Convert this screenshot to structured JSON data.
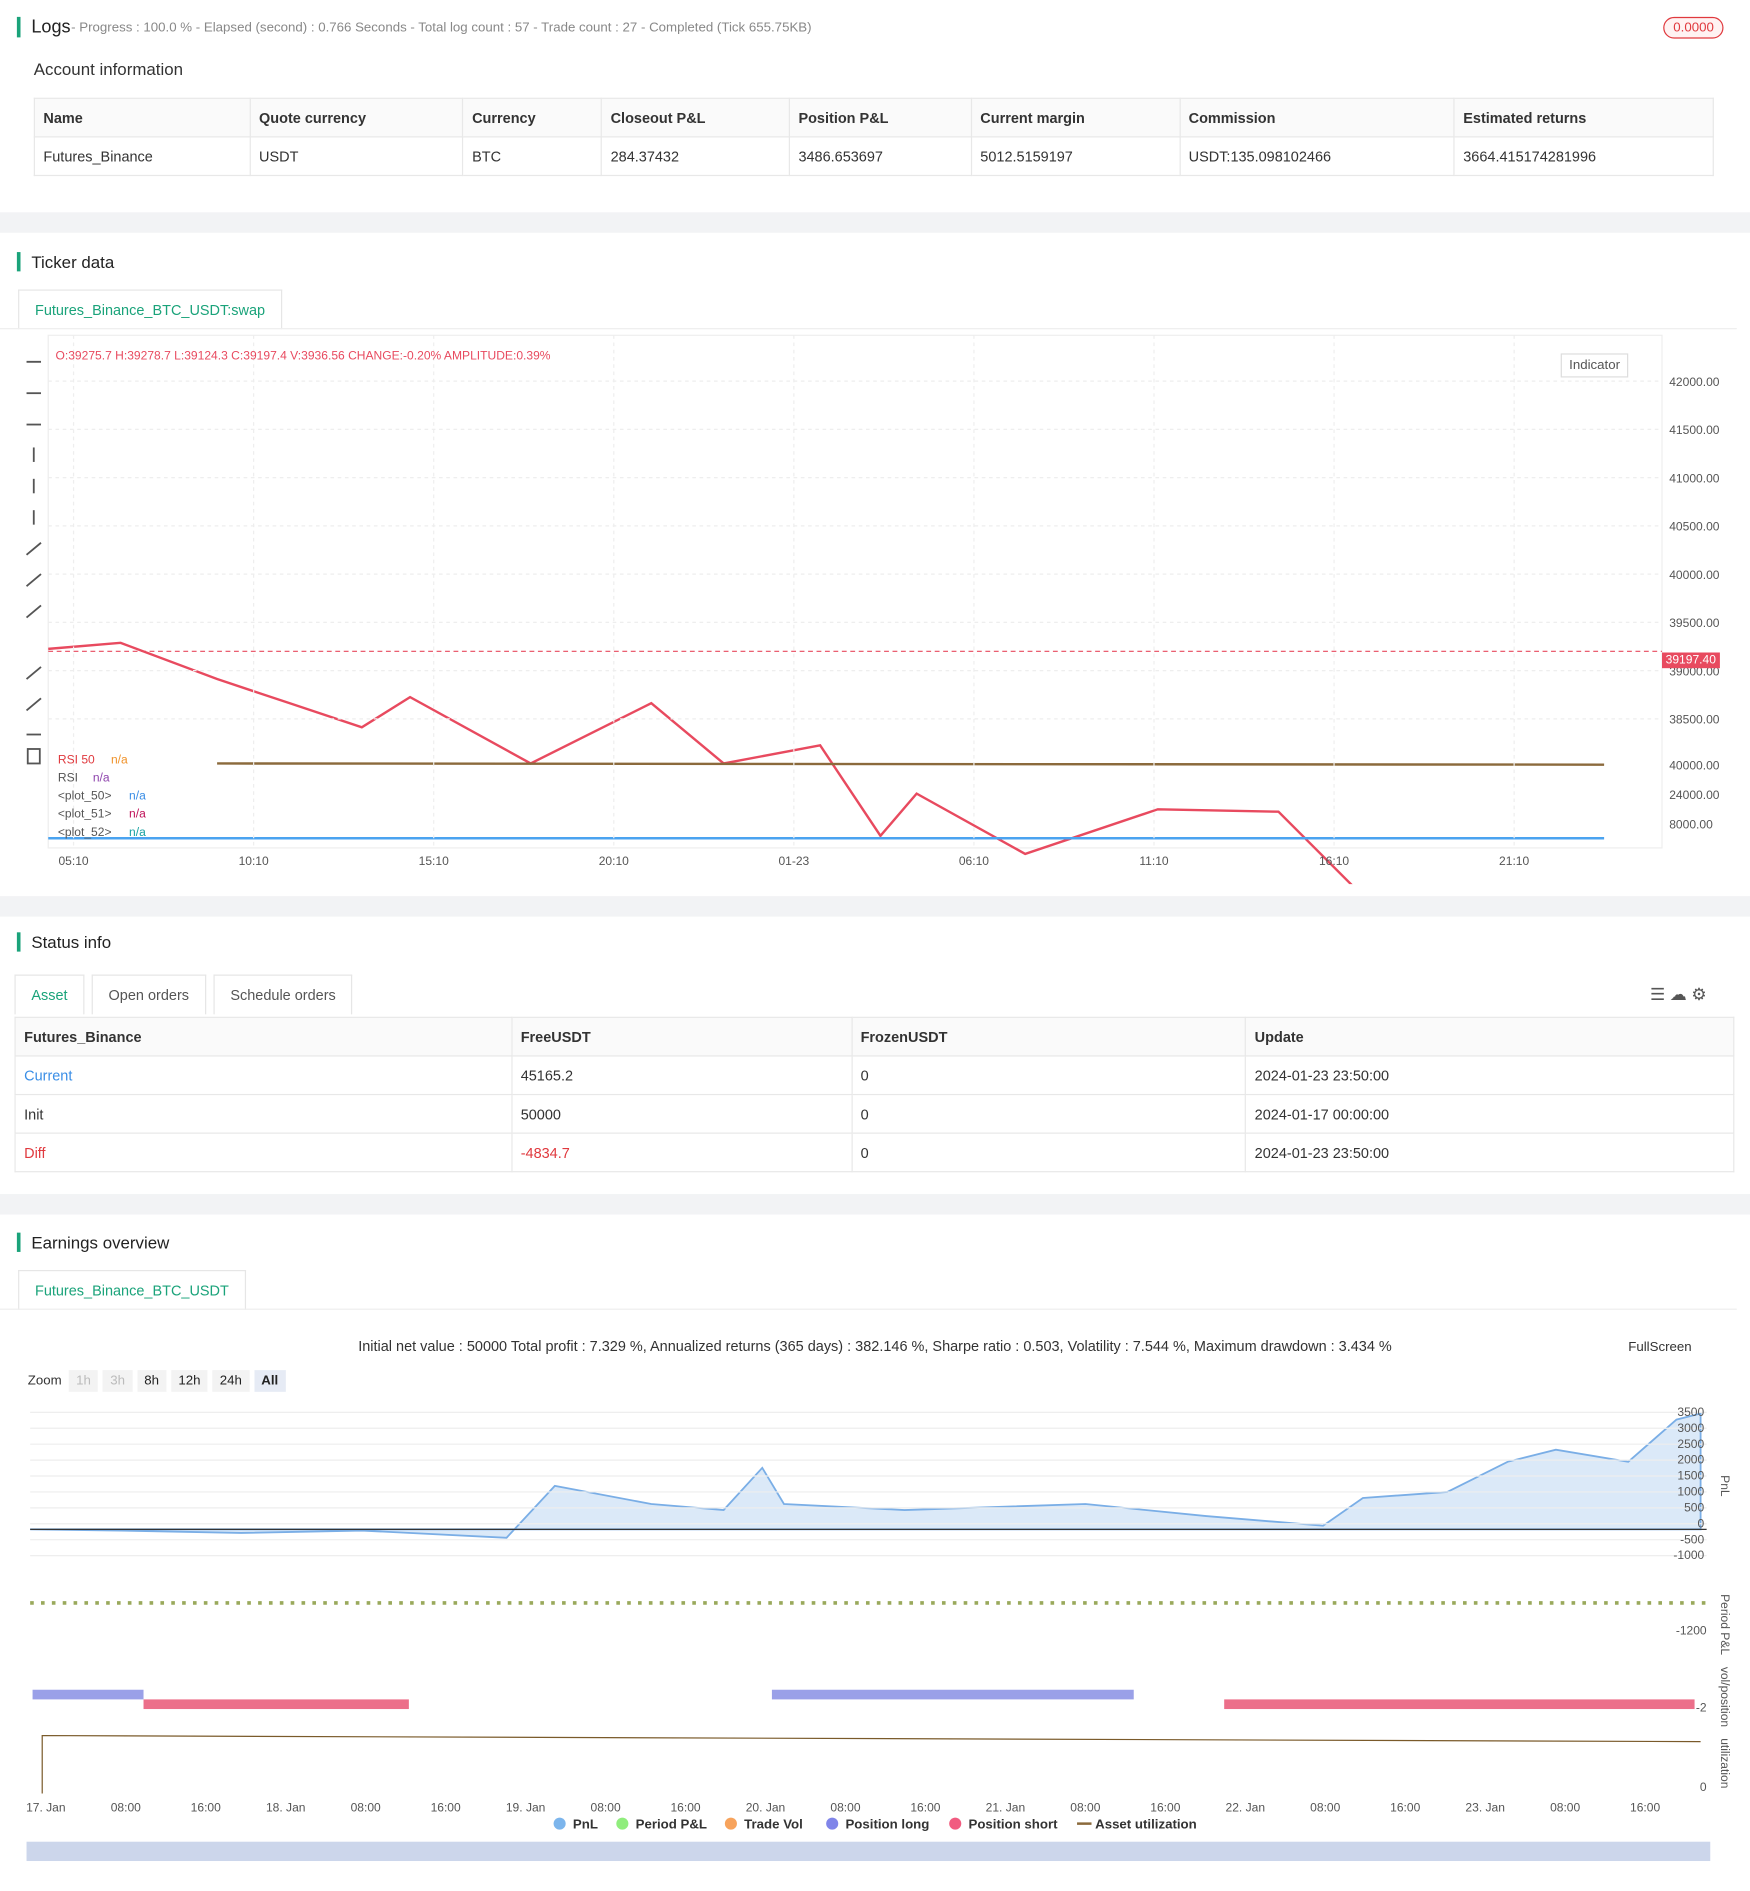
{
  "logs": {
    "title": "Logs",
    "status": "- Progress : 100.0 % - Elapsed (second) : 0.766  Seconds - Total log count : 57 - Trade count : 27 - Completed (Tick 655.75KB)",
    "badge": "0.0000"
  },
  "account": {
    "title": "Account information",
    "headers": [
      "Name",
      "Quote currency",
      "Currency",
      "Closeout P&L",
      "Position P&L",
      "Current margin",
      "Commission",
      "Estimated returns"
    ],
    "rows": [
      [
        "Futures_Binance",
        "USDT",
        "BTC",
        "284.37432",
        "3486.653697",
        "5012.5159197",
        "USDT:135.098102466",
        "3664.415174281996"
      ]
    ]
  },
  "ticker": {
    "title": "Ticker data",
    "tab": "Futures_Binance_BTC_USDT:swap",
    "ohlc": "O:39275.7 H:39278.7 L:39124.3 C:39197.4 V:3936.56 CHANGE:-0.20% AMPLITUDE:0.39%",
    "indicator_button": "Indicator",
    "last_price": "39197.40",
    "price_ticks": [
      "42000.00",
      "41500.00",
      "41000.00",
      "40500.00",
      "40000.00",
      "39500.00",
      "39000.00",
      "38500.00"
    ],
    "indicator_ticks": [
      "40000.00",
      "24000.00",
      "8000.00"
    ],
    "legend": [
      [
        "RSI 50",
        "n/a"
      ],
      [
        "RSI",
        "n/a"
      ],
      [
        "<plot_50>",
        "n/a"
      ],
      [
        "<plot_51>",
        "n/a"
      ],
      [
        "<plot_52>",
        "n/a"
      ]
    ],
    "time_ticks": [
      "05:10",
      "10:10",
      "15:10",
      "20:10",
      "01-23",
      "06:10",
      "11:10",
      "16:10",
      "21:10"
    ]
  },
  "status": {
    "title": "Status info",
    "tabs": [
      "Asset",
      "Open orders",
      "Schedule orders"
    ],
    "headers": [
      "Futures_Binance",
      "FreeUSDT",
      "FrozenUSDT",
      "Update"
    ],
    "rows": [
      [
        "Current",
        "45165.2",
        "0",
        "2024-01-23 23:50:00"
      ],
      [
        "Init",
        "50000",
        "0",
        "2024-01-17 00:00:00"
      ],
      [
        "Diff",
        "-4834.7",
        "0",
        "2024-01-23 23:50:00"
      ]
    ]
  },
  "earnings": {
    "title": "Earnings overview",
    "tab": "Futures_Binance_BTC_USDT",
    "summary": "Initial net value : 50000 Total profit : 7.329 %, Annualized returns (365 days) : 382.146 %, Sharpe ratio : 0.503, Volatility : 7.544 %, Maximum drawdown : 3.434 %",
    "zoom_label": "Zoom",
    "zoom_buttons": [
      "1h",
      "3h",
      "8h",
      "12h",
      "24h",
      "All"
    ],
    "fullscreen": "FullScreen",
    "pnl_ticks": [
      "3500",
      "3000",
      "2500",
      "2000",
      "1500",
      "1000",
      "500",
      "0",
      "-500",
      "-1000"
    ],
    "axis_titles": [
      "PnL",
      "Period P&L",
      "vol/position",
      "utilization"
    ],
    "period_tick": "-1200",
    "vol_tick": "-2",
    "util_tick": "0",
    "time_ticks": [
      "17. Jan",
      "08:00",
      "16:00",
      "18. Jan",
      "08:00",
      "16:00",
      "19. Jan",
      "08:00",
      "16:00",
      "20. Jan",
      "08:00",
      "16:00",
      "21. Jan",
      "08:00",
      "16:00",
      "22. Jan",
      "08:00",
      "16:00",
      "23. Jan",
      "08:00",
      "16:00"
    ],
    "legend": [
      "PnL",
      "Period P&L",
      "Trade Vol",
      "Position long",
      "Position short",
      "Asset utilization"
    ]
  }
}
